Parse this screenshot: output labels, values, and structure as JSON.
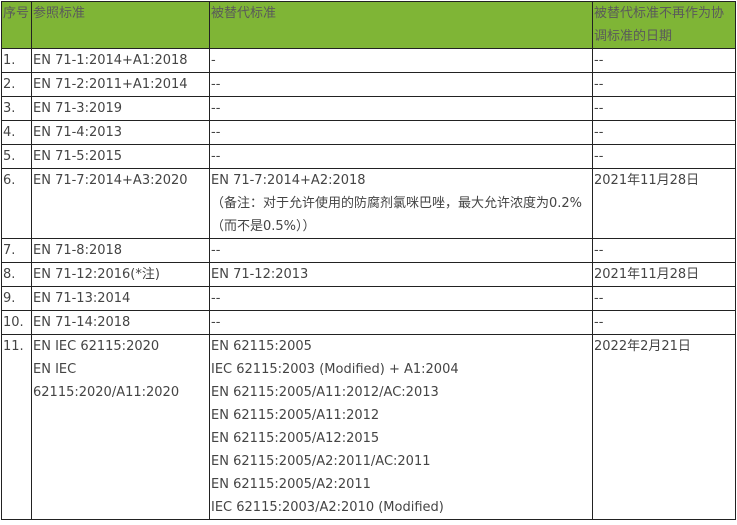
{
  "header": {
    "no": "序号",
    "ref": "参照标准",
    "replaced": "被替代标准",
    "date": "被替代标准不再作为协调标准的日期"
  },
  "header_color": "#7fb536",
  "rows": [
    {
      "no": "1.",
      "ref": [
        "EN 71-1:2014+A1:2018"
      ],
      "replaced": [
        "-"
      ],
      "date": "--"
    },
    {
      "no": "2.",
      "ref": [
        "EN 71-2:2011+A1:2014"
      ],
      "replaced": [
        "--"
      ],
      "date": "--"
    },
    {
      "no": "3.",
      "ref": [
        "EN 71-3:2019"
      ],
      "replaced": [
        "--"
      ],
      "date": "--"
    },
    {
      "no": "4.",
      "ref": [
        "EN 71-4:2013"
      ],
      "replaced": [
        "--"
      ],
      "date": "--"
    },
    {
      "no": "5.",
      "ref": [
        "EN 71-5:2015"
      ],
      "replaced": [
        "--"
      ],
      "date": "--"
    },
    {
      "no": "6.",
      "ref": [
        "EN 71-7:2014+A3:2020"
      ],
      "replaced": [
        "EN 71-7:2014+A2:2018",
        "（备注：对于允许使用的防腐剂氯咪巴唑，最大允许浓度为0.2%（而不是0.5%））"
      ],
      "date": "2021年11月28日"
    },
    {
      "no": "7.",
      "ref": [
        "EN 71-8:2018"
      ],
      "replaced": [
        "--"
      ],
      "date": "--"
    },
    {
      "no": "8.",
      "ref": [
        "EN 71-12:2016(*注)"
      ],
      "replaced": [
        "EN 71-12:2013"
      ],
      "date": "2021年11月28日"
    },
    {
      "no": "9.",
      "ref": [
        "EN 71-13:2014"
      ],
      "replaced": [
        "--"
      ],
      "date": "--"
    },
    {
      "no": "10.",
      "ref": [
        "EN 71-14:2018"
      ],
      "replaced": [
        "--"
      ],
      "date": "--"
    },
    {
      "no": "11.",
      "ref": [
        "EN IEC 62115:2020",
        "EN IEC 62115:2020/A11:2020"
      ],
      "replaced": [
        "EN 62115:2005",
        "IEC 62115:2003 (Modified) + A1:2004",
        "EN 62115:2005/A11:2012/AC:2013",
        "EN 62115:2005/A11:2012",
        "EN 62115:2005/A12:2015",
        "EN 62115:2005/A2:2011/AC:2011",
        "EN 62115:2005/A2:2011",
        "IEC 62115:2003/A2:2010 (Modified)"
      ],
      "date": "2022年2月21日"
    }
  ]
}
